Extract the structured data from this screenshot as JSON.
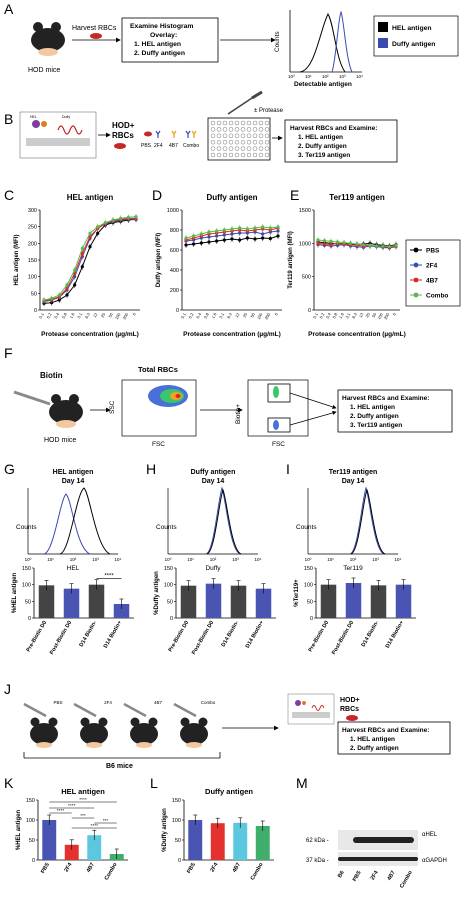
{
  "panel_letters": {
    "A": "A",
    "B": "B",
    "C": "C",
    "D": "D",
    "E": "E",
    "F": "F",
    "G": "G",
    "H": "H",
    "I": "I",
    "J": "J",
    "K": "K",
    "L": "L",
    "M": "M"
  },
  "panelA": {
    "mouse_label": "HOD mice",
    "arrow_label": "Harvest RBCs",
    "box_lines": [
      "Examine Histogram",
      "Overlay:",
      "1. HEL antigen",
      "2. Duffy antigen"
    ],
    "hist_xlabel": "Detectable antigen",
    "hist_ylabel": "Counts",
    "hist_ticks": [
      "10⁰",
      "10¹",
      "10²",
      "10³",
      "10⁴"
    ],
    "legend": [
      {
        "label": "HEL antigen",
        "color": "#000000"
      },
      {
        "label": "Duffy antigen",
        "color": "#3a4bb0"
      }
    ]
  },
  "panelB": {
    "rbc_label_1": "HOD+",
    "rbc_label_2": "RBCs",
    "antibodies": [
      "PBS",
      "2F4",
      "4B7",
      "Combo"
    ],
    "protease_label": "± Protease",
    "box_lines": [
      "Harvest RBCs and Examine:",
      "1. HEL antigen",
      "2. Duffy antigen",
      "3. Ter119 antigen"
    ],
    "glyph_labels": [
      "HEL",
      "Duffy"
    ]
  },
  "panelsCDE": {
    "xlabel": "Protease concentration (µg/mL)",
    "xticks": [
      "0.1",
      "0.2",
      "0.4",
      "0.8",
      "1.6",
      "3.1",
      "6.3",
      "13",
      "25",
      "50",
      "100",
      "200",
      "0"
    ],
    "legend": [
      {
        "label": "PBS",
        "color": "#000000"
      },
      {
        "label": "2F4",
        "color": "#3a4bb0"
      },
      {
        "label": "4B7",
        "color": "#e3241b"
      },
      {
        "label": "Combo",
        "color": "#56b94a"
      }
    ]
  },
  "panelF": {
    "reagent": "Biotin",
    "mouse_label": "HOD mice",
    "plot1_title": "Total RBCs",
    "plot1_xlabel": "FSC",
    "plot1_ylabel": "SSC",
    "plot2_xlabel": "FSC",
    "plot2_ylabel": "Biotin+",
    "box_lines": [
      "Harvest RBCs and Examine:",
      "1. HEL antigen",
      "2. Duffy antigen",
      "3. Ter119 antigen"
    ]
  },
  "panelsGHI_hist": [
    {
      "title": "HEL antigen",
      "subtitle": "Day 14",
      "xlabel": "HEL",
      "ylabel": "Counts"
    },
    {
      "title": "Duffy antigen",
      "subtitle": "Day 14",
      "xlabel": "Duffy",
      "ylabel": "Counts"
    },
    {
      "title": "Ter119 antigen",
      "subtitle": "Day 14",
      "xlabel": "Ter119",
      "ylabel": "Counts"
    }
  ],
  "panelJ": {
    "treatments": [
      "PBS",
      "2F4",
      "4B7",
      "Combo"
    ],
    "mouse_label": "B6 mice",
    "rbc_label_1": "HOD+",
    "rbc_label_2": "RBCs",
    "box_lines": [
      "Harvest RBCs and Examine:",
      "1. HEL antigen",
      "2. Duffy antigen"
    ]
  },
  "panelM": {
    "markers": [
      "62 kDa -",
      "37 kDa -"
    ],
    "bands": [
      "αHEL",
      "αGAPDH"
    ],
    "lanes": [
      "B6",
      "PBS",
      "2F4",
      "4B7",
      "Combo"
    ]
  },
  "chart_data": [
    {
      "id": "C",
      "type": "line",
      "title": "HEL antigen",
      "ylabel": "HEL antigen (MFI)",
      "xlabel": "Protease concentration (µg/mL)",
      "yticks": [
        "0",
        "50",
        "100",
        "150",
        "200",
        "250",
        "300"
      ],
      "ylim": [
        0,
        300
      ],
      "categories": [
        "0.1",
        "0.2",
        "0.4",
        "0.8",
        "1.6",
        "3.1",
        "6.3",
        "13",
        "25",
        "50",
        "100",
        "200",
        "0"
      ],
      "series": [
        {
          "name": "PBS",
          "color": "#000000",
          "values": [
            20,
            22,
            30,
            45,
            75,
            130,
            190,
            230,
            255,
            262,
            266,
            270,
            272
          ]
        },
        {
          "name": "2F4",
          "color": "#3a4bb0",
          "values": [
            25,
            30,
            38,
            60,
            100,
            160,
            215,
            245,
            258,
            265,
            270,
            272,
            272
          ]
        },
        {
          "name": "4B7",
          "color": "#e3241b",
          "values": [
            28,
            32,
            40,
            65,
            110,
            170,
            220,
            245,
            260,
            268,
            272,
            275,
            275
          ]
        },
        {
          "name": "Combo",
          "color": "#56b94a",
          "values": [
            30,
            35,
            45,
            75,
            120,
            185,
            230,
            250,
            262,
            270,
            275,
            278,
            280
          ]
        }
      ]
    },
    {
      "id": "D",
      "type": "line",
      "title": "Duffy antigen",
      "ylabel": "Duffy antigen (MFI)",
      "xlabel": "Protease concentration (µg/mL)",
      "yticks": [
        "0",
        "200",
        "400",
        "600",
        "800",
        "1000"
      ],
      "ylim": [
        0,
        1000
      ],
      "categories": [
        "0.1",
        "0.2",
        "0.4",
        "0.8",
        "1.6",
        "3.1",
        "6.3",
        "13",
        "25",
        "50",
        "100",
        "200",
        "0"
      ],
      "series": [
        {
          "name": "PBS",
          "color": "#000000",
          "values": [
            650,
            660,
            670,
            680,
            690,
            700,
            710,
            700,
            720,
            710,
            720,
            715,
            740
          ]
        },
        {
          "name": "2F4",
          "color": "#3a4bb0",
          "values": [
            690,
            700,
            720,
            730,
            740,
            750,
            760,
            770,
            770,
            780,
            760,
            780,
            790
          ]
        },
        {
          "name": "4B7",
          "color": "#e3241b",
          "values": [
            700,
            720,
            740,
            760,
            770,
            780,
            790,
            800,
            790,
            800,
            810,
            800,
            820
          ]
        },
        {
          "name": "Combo",
          "color": "#56b94a",
          "values": [
            720,
            740,
            760,
            780,
            790,
            800,
            810,
            820,
            810,
            820,
            830,
            820,
            830
          ]
        }
      ]
    },
    {
      "id": "E",
      "type": "line",
      "title": "Ter119 antigen",
      "ylabel": "Ter119 antigen (MFI)",
      "xlabel": "Protease concentration (µg/mL)",
      "yticks": [
        "0",
        "500",
        "1000",
        "1500"
      ],
      "ylim": [
        0,
        1500
      ],
      "categories": [
        "0.1",
        "0.2",
        "0.4",
        "0.8",
        "1.6",
        "3.1",
        "6.3",
        "13",
        "25",
        "50",
        "100",
        "200",
        "0"
      ],
      "series": [
        {
          "name": "PBS",
          "color": "#000000",
          "values": [
            1020,
            1010,
            1000,
            990,
            1000,
            990,
            980,
            990,
            1000,
            980,
            970,
            960,
            980
          ]
        },
        {
          "name": "2F4",
          "color": "#3a4bb0",
          "values": [
            980,
            970,
            960,
            970,
            980,
            960,
            950,
            940,
            960,
            950,
            940,
            930,
            950
          ]
        },
        {
          "name": "4B7",
          "color": "#e3241b",
          "values": [
            1000,
            990,
            980,
            1000,
            990,
            980,
            970,
            960,
            970,
            960,
            950,
            940,
            960
          ]
        },
        {
          "name": "Combo",
          "color": "#56b94a",
          "values": [
            1050,
            1040,
            1030,
            1020,
            1010,
            1000,
            990,
            980,
            970,
            960,
            960,
            950,
            970
          ]
        }
      ]
    },
    {
      "id": "G",
      "type": "bar",
      "ylabel": "%HEL antigen",
      "categories": [
        "Pre-Biotin D0",
        "Post-Biotin D0",
        "D14 Biotin-",
        "D14 Biotin+"
      ],
      "values": [
        98,
        88,
        100,
        42
      ],
      "colors": [
        "#444444",
        "#4a55b3",
        "#444444",
        "#4a55b3"
      ],
      "yticks": [
        "0",
        "50",
        "100",
        "150"
      ],
      "ylim": [
        0,
        150
      ],
      "annotations": [
        "****"
      ]
    },
    {
      "id": "H",
      "type": "bar",
      "ylabel": "%Duffy antigen",
      "categories": [
        "Pre-Biotin D0",
        "Post-Biotin D0",
        "D14 Biotin-",
        "D14 Biotin+"
      ],
      "values": [
        97,
        103,
        97,
        88
      ],
      "colors": [
        "#444444",
        "#4a55b3",
        "#444444",
        "#4a55b3"
      ],
      "yticks": [
        "0",
        "50",
        "100",
        "150"
      ],
      "ylim": [
        0,
        150
      ]
    },
    {
      "id": "I",
      "type": "bar",
      "ylabel": "%Ter119+",
      "categories": [
        "Pre-Biotin D0",
        "Post-Biotin D0",
        "D14 Biotin-",
        "D14 Biotin+"
      ],
      "values": [
        100,
        105,
        98,
        100
      ],
      "colors": [
        "#444444",
        "#4a55b3",
        "#444444",
        "#4a55b3"
      ],
      "yticks": [
        "0",
        "50",
        "100",
        "150"
      ],
      "ylim": [
        0,
        150
      ]
    },
    {
      "id": "K",
      "type": "bar",
      "title": "HEL antigen",
      "ylabel": "%HEL antigen",
      "categories": [
        "PBS",
        "2F4",
        "4B7",
        "Combo"
      ],
      "values": [
        100,
        38,
        62,
        15
      ],
      "colors": [
        "#4a55b3",
        "#e3312d",
        "#5cc8e0",
        "#3fae6a"
      ],
      "yticks": [
        "0",
        "50",
        "100",
        "150"
      ],
      "ylim": [
        0,
        150
      ],
      "annotations": [
        "****",
        "****",
        "****",
        "***",
        "***",
        "****"
      ]
    },
    {
      "id": "L",
      "type": "bar",
      "title": "Duffy antigen",
      "ylabel": "%Duffy antigen",
      "categories": [
        "PBS",
        "2F4",
        "4B7",
        "Combo"
      ],
      "values": [
        100,
        92,
        93,
        85
      ],
      "colors": [
        "#4a55b3",
        "#e3312d",
        "#5cc8e0",
        "#3fae6a"
      ],
      "yticks": [
        "0",
        "50",
        "100",
        "150"
      ],
      "ylim": [
        0,
        150
      ]
    }
  ]
}
